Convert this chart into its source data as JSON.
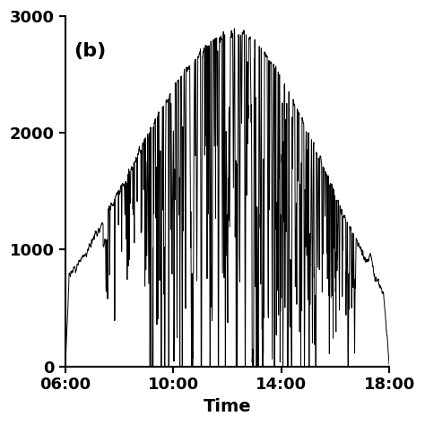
{
  "title": "",
  "panel_label": "(b)",
  "xlabel": "Time",
  "ylabel": "",
  "xlim_hours": [
    6.0,
    18.0
  ],
  "ylim": [
    0,
    3000
  ],
  "yticks": [
    0,
    1000,
    2000,
    3000
  ],
  "xtick_labels": [
    "06:00",
    "10:00",
    "14:00",
    "18:00"
  ],
  "xtick_positions": [
    6.0,
    10.0,
    14.0,
    18.0
  ],
  "line_color": "#000000",
  "line_width": 0.7,
  "bg_color": "#ffffff",
  "figsize": [
    4.74,
    4.74
  ],
  "dpi": 100,
  "panel_label_fontsize": 16
}
